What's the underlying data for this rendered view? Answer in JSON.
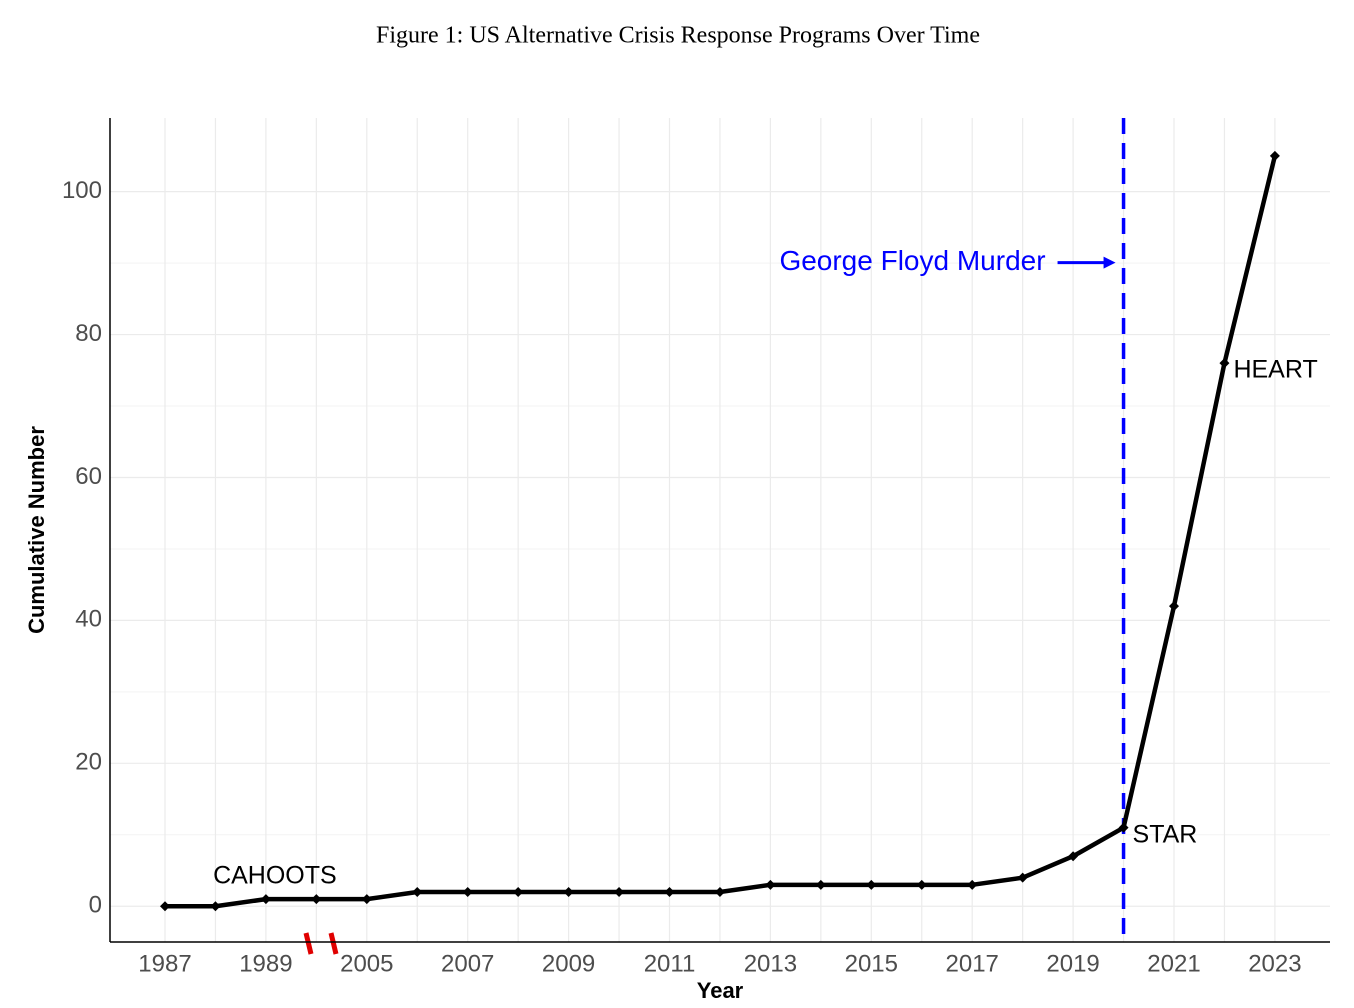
{
  "chart_data": {
    "type": "line",
    "title": "Figure 1: US Alternative Crisis Response Programs Over Time",
    "x_label": "Year",
    "y_label": "Cumulative Number",
    "categories": [
      "1987",
      null,
      "1989",
      null,
      "2005",
      null,
      "2007",
      null,
      "2009",
      null,
      "2011",
      null,
      "2013",
      null,
      "2015",
      null,
      "2017",
      null,
      "2019",
      null,
      "2021",
      null,
      "2023"
    ],
    "values": [
      0,
      0,
      1,
      1,
      1,
      2,
      2,
      2,
      2,
      2,
      2,
      2,
      3,
      3,
      3,
      3,
      3,
      4,
      7,
      11,
      42,
      76,
      105
    ],
    "point_labels": [
      null,
      null,
      "CAHOOTS",
      null,
      null,
      null,
      null,
      null,
      null,
      null,
      null,
      null,
      null,
      null,
      null,
      null,
      null,
      null,
      null,
      "STAR",
      null,
      "HEART",
      null
    ],
    "color": "#000000",
    "ylim": [
      -5,
      110.3
    ],
    "yticks": [
      0,
      20,
      40,
      60,
      80,
      100
    ],
    "grid": true,
    "event": {
      "label": "George Floyd Murder",
      "index": 19,
      "color": "#0000ff"
    }
  }
}
